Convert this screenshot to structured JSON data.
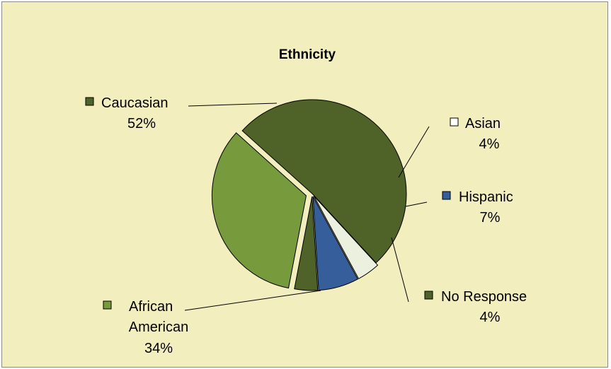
{
  "chart_data": {
    "type": "pie",
    "title": "Ethnicity",
    "slices": [
      {
        "label": [
          "Caucasian"
        ],
        "pct_label": "52%",
        "value": 52,
        "color": "#4f6228",
        "legend_color": "#4f6228"
      },
      {
        "label": [
          "Asian"
        ],
        "pct_label": "4%",
        "value": 4,
        "color": "#ebf1de",
        "legend_color": "#ffffff"
      },
      {
        "label": [
          "Hispanic"
        ],
        "pct_label": "7%",
        "value": 7,
        "color": "#355e9a",
        "legend_color": "#355e9a"
      },
      {
        "label": [
          "No Response"
        ],
        "pct_label": "4%",
        "value": 4,
        "color": "#4f6228",
        "legend_color": "#4f6228"
      },
      {
        "label": [
          "African",
          "American"
        ],
        "pct_label": "34%",
        "value": 34,
        "color": "#779a3c",
        "legend_color": "#779a3c"
      }
    ],
    "legend": "none"
  }
}
